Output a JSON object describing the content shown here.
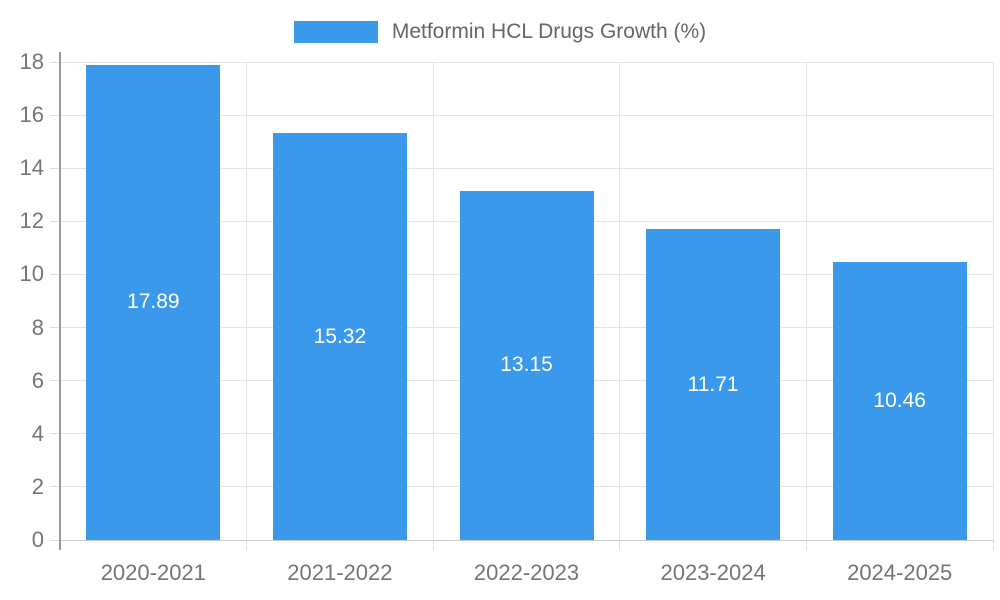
{
  "chart_data": {
    "type": "bar",
    "title": "Metformin HCL Drugs Growth (%)",
    "categories": [
      "2020-2021",
      "2021-2022",
      "2022-2023",
      "2023-2024",
      "2024-2025"
    ],
    "values": [
      17.89,
      15.32,
      13.15,
      11.71,
      10.46
    ],
    "value_labels": [
      "17.89",
      "15.32",
      "13.15",
      "11.71",
      "10.46"
    ],
    "xlabel": "",
    "ylabel": "",
    "ylim": [
      0,
      18
    ],
    "yticks": [
      0,
      2,
      4,
      6,
      8,
      10,
      12,
      14,
      16,
      18
    ],
    "grid": "on",
    "legend_position": "top"
  },
  "colors": {
    "bar": "#3B99EC",
    "bar_label_text": "#FFFFFF",
    "grid_line": "#E4E4E4",
    "tick_mark": "#DCDCDC",
    "y_axis_line": "#9B9B9B",
    "baseline": "#C9C9C9",
    "axis_text": "#757575",
    "legend_text": "#666666",
    "background": "#FFFFFF"
  }
}
